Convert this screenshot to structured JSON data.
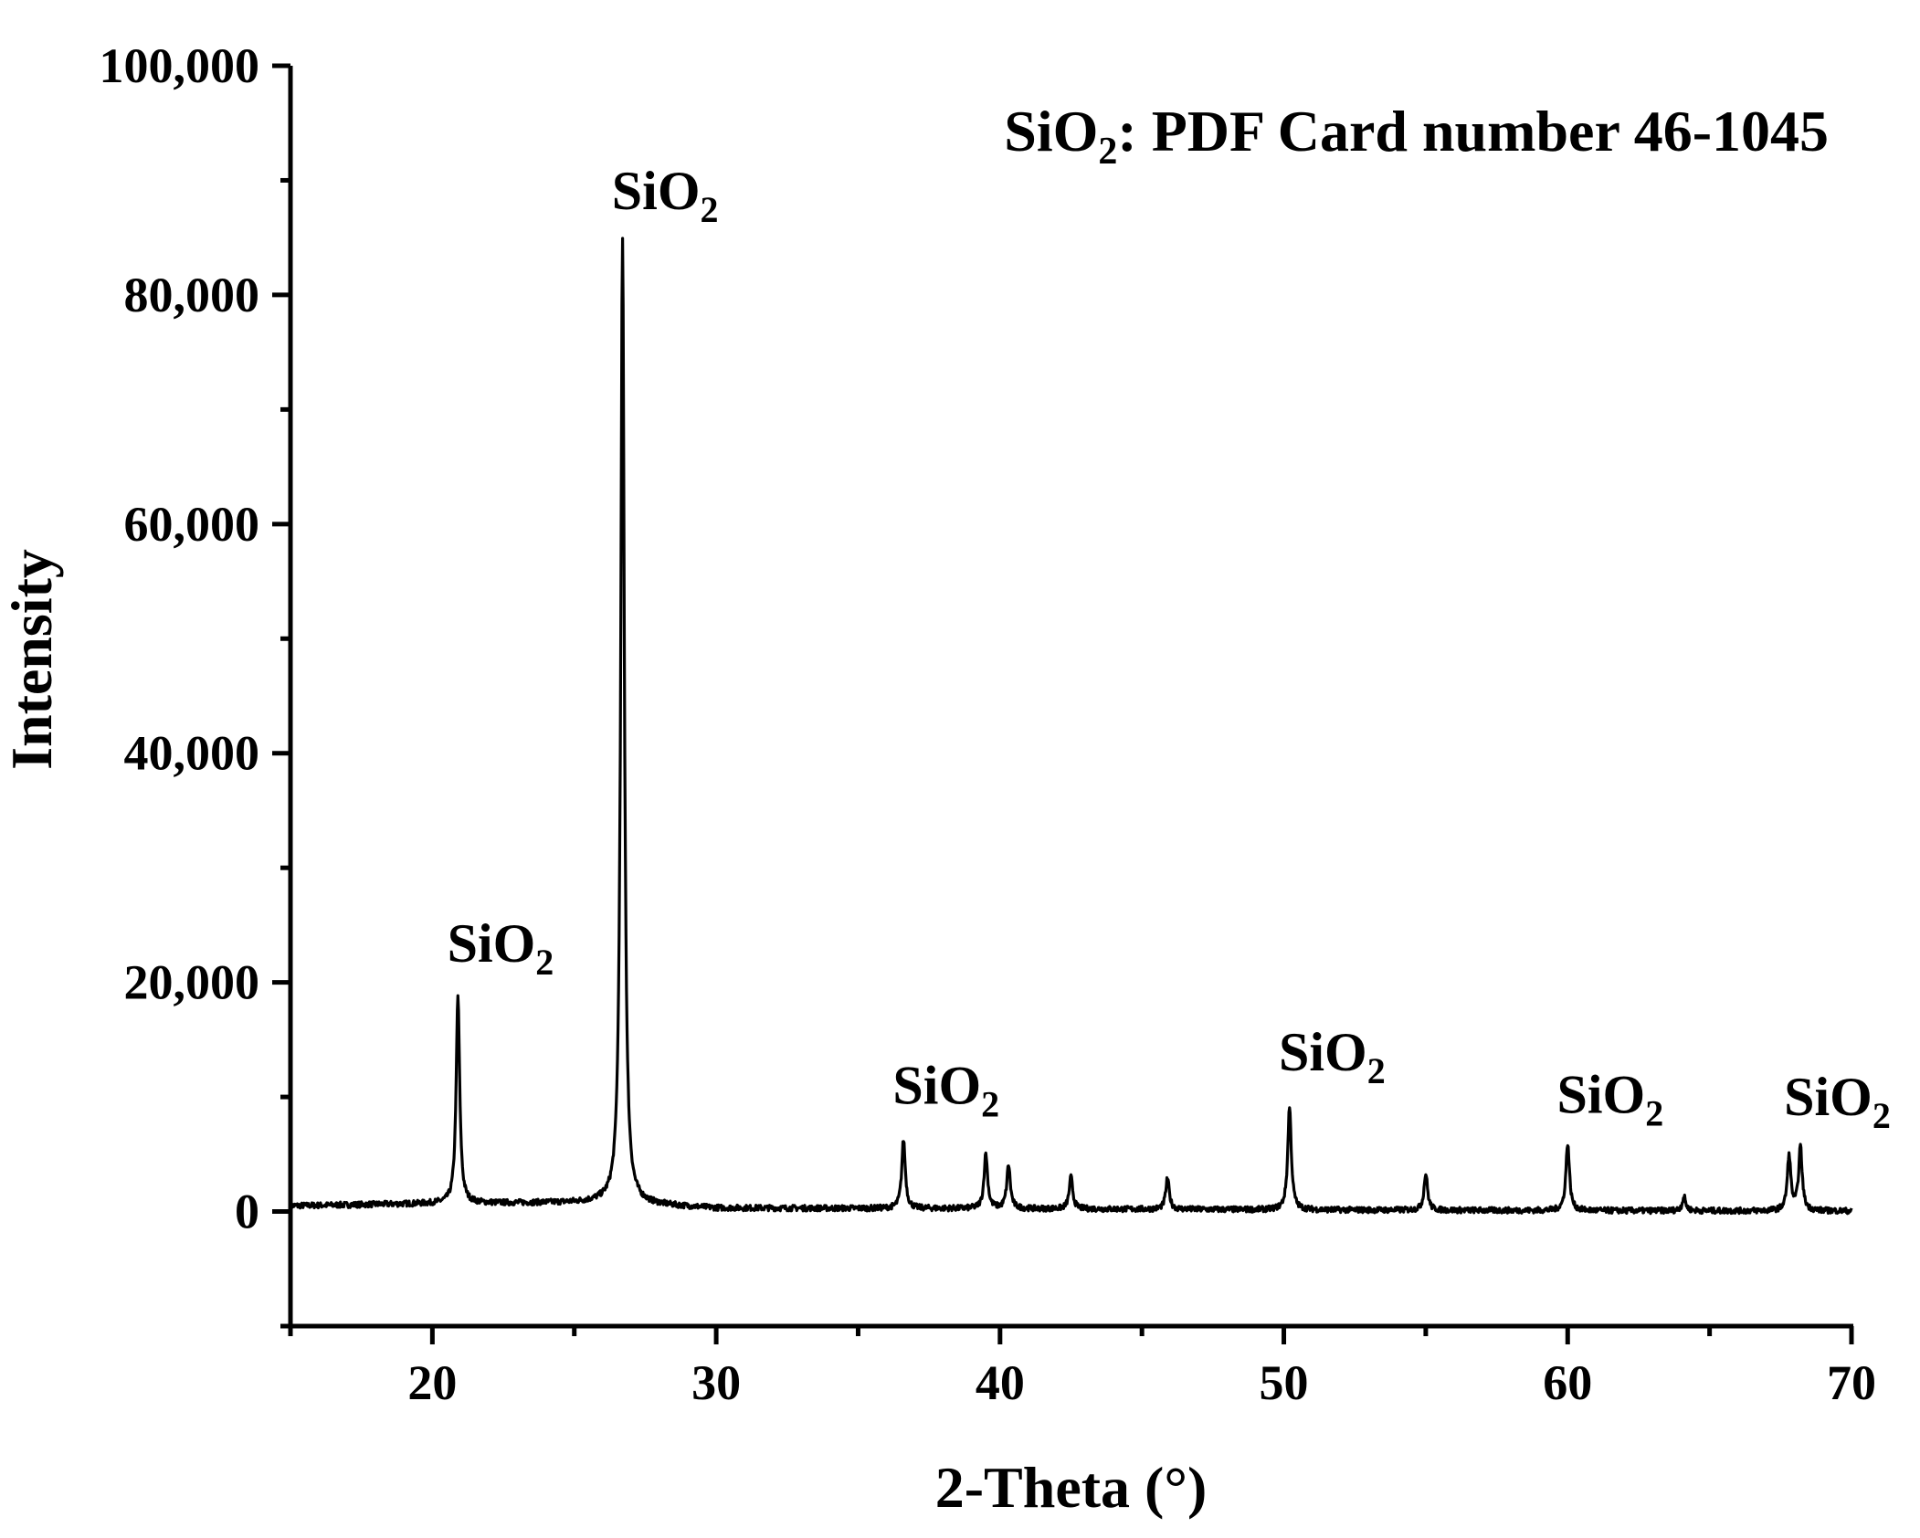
{
  "chart_data": {
    "type": "line",
    "title": "",
    "xlabel": "2-Theta (°)",
    "ylabel": "Intensity",
    "xlim": [
      15,
      70
    ],
    "ylim": [
      -10000,
      100000
    ],
    "x_ticks": [
      {
        "value": 20,
        "label": "20"
      },
      {
        "value": 30,
        "label": "30"
      },
      {
        "value": 40,
        "label": "40"
      },
      {
        "value": 50,
        "label": "50"
      },
      {
        "value": 60,
        "label": "60"
      },
      {
        "value": 70,
        "label": "70"
      }
    ],
    "x_minor_step": 5,
    "y_ticks": [
      {
        "value": 0,
        "label": "0"
      },
      {
        "value": 20000,
        "label": "20,000"
      },
      {
        "value": 40000,
        "label": "40,000"
      },
      {
        "value": 60000,
        "label": "60,000"
      },
      {
        "value": 80000,
        "label": "80,000"
      },
      {
        "value": 100000,
        "label": "100,000"
      }
    ],
    "y_minor_step": 10000,
    "grid": false,
    "legend": "none",
    "line_color": "#000000",
    "baseline": {
      "points": [
        [
          15,
          500
        ],
        [
          20,
          700
        ],
        [
          26,
          800
        ],
        [
          30,
          300
        ],
        [
          40,
          250
        ],
        [
          50,
          150
        ],
        [
          60,
          80
        ],
        [
          70,
          50
        ]
      ],
      "noise_amplitude": 250
    },
    "peaks": [
      {
        "two_theta": 20.9,
        "intensity": 18000
      },
      {
        "two_theta": 26.7,
        "intensity": 84000
      },
      {
        "two_theta": 36.6,
        "intensity": 6000
      },
      {
        "two_theta": 39.5,
        "intensity": 4800
      },
      {
        "two_theta": 40.3,
        "intensity": 3800
      },
      {
        "two_theta": 42.5,
        "intensity": 2800
      },
      {
        "two_theta": 45.9,
        "intensity": 2700
      },
      {
        "two_theta": 50.2,
        "intensity": 9000
      },
      {
        "two_theta": 55.0,
        "intensity": 3200
      },
      {
        "two_theta": 60.0,
        "intensity": 5900
      },
      {
        "two_theta": 64.1,
        "intensity": 1200
      },
      {
        "two_theta": 67.8,
        "intensity": 4800
      },
      {
        "two_theta": 68.2,
        "intensity": 5500
      }
    ],
    "annotations": [
      {
        "main": "SiO",
        "sub": "2",
        "x": 22.4,
        "y": 21800
      },
      {
        "main": "SiO",
        "sub": "2",
        "x": 28.2,
        "y": 87500
      },
      {
        "main": "SiO",
        "sub": "2",
        "x": 38.1,
        "y": 9400
      },
      {
        "main": "SiO",
        "sub": "2",
        "x": 51.7,
        "y": 12300
      },
      {
        "main": "SiO",
        "sub": "2",
        "x": 61.5,
        "y": 8600
      },
      {
        "main": "SiO",
        "sub": "2",
        "x": 69.5,
        "y": 8400
      }
    ],
    "card_note": {
      "main": "SiO",
      "sub": "2",
      "rest": ":  PDF Card number 46-1045"
    }
  }
}
